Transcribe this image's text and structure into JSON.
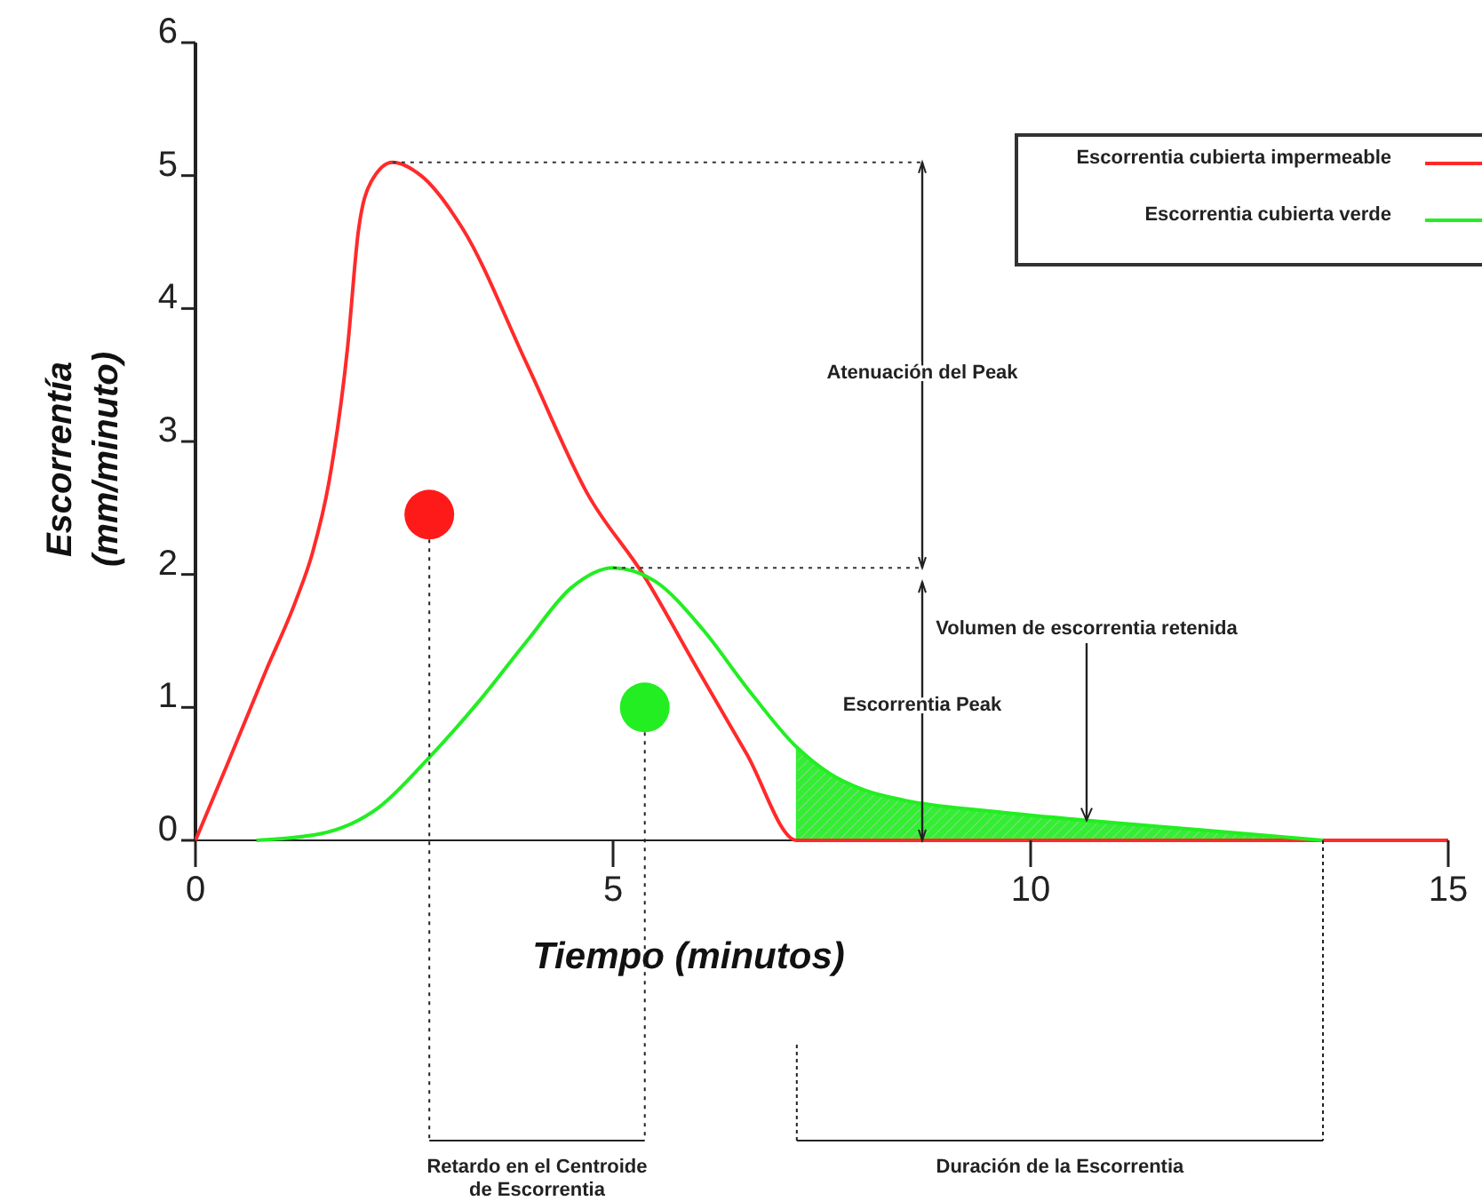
{
  "chart_data": {
    "type": "line",
    "xlabel": "Tiempo (minutos)",
    "ylabel": "Escorrentía\n(mm/minuto)",
    "xlim": [
      0,
      15
    ],
    "ylim": [
      0,
      6
    ],
    "xticks": [
      0,
      5,
      10,
      15
    ],
    "yticks": [
      0,
      1,
      2,
      3,
      4,
      5,
      6
    ],
    "grid": false,
    "legend": "top right",
    "marker": "none",
    "line_style": "solid",
    "series": [
      {
        "name": "Escorrentia cubierta impermeable",
        "color": "#ff2a2a",
        "x": [
          0,
          0.4,
          0.84,
          1.2,
          1.4,
          1.6,
          1.82,
          1.95,
          2.1,
          2.36,
          2.7,
          3.2,
          3.97,
          4.7,
          5.37,
          6.0,
          6.6,
          7.2,
          15
        ],
        "values": [
          0,
          0.6,
          1.27,
          1.8,
          2.16,
          2.7,
          3.7,
          4.58,
          4.95,
          5.1,
          5.0,
          4.6,
          3.58,
          2.6,
          1.99,
          1.3,
          0.65,
          0,
          0
        ]
      },
      {
        "name": "Escorrentia cubierta verde",
        "color": "#22ee22",
        "x": [
          0.73,
          1.5,
          2.2,
          2.78,
          3.4,
          3.97,
          4.5,
          5.0,
          5.5,
          6.07,
          6.6,
          7.2,
          7.6,
          8.0,
          8.5,
          9.5,
          10.67,
          12,
          13.5
        ],
        "values": [
          0,
          0.05,
          0.25,
          0.61,
          1.05,
          1.5,
          1.9,
          2.05,
          1.95,
          1.59,
          1.15,
          0.7,
          0.5,
          0.38,
          0.3,
          0.22,
          0.15,
          0.08,
          0
        ]
      },
      {
        "type": "area",
        "color": "#33ee33",
        "x": [
          7.2,
          7.6,
          8.0,
          8.5,
          9.5,
          10.67,
          12,
          13.5
        ],
        "values": [
          0.7,
          0.5,
          0.38,
          0.3,
          0.22,
          0.15,
          0.08,
          0
        ]
      },
      {
        "type": "scatter",
        "color": "#ff1a1a",
        "marker": "circle",
        "x": [
          2.8
        ],
        "values": [
          2.45
        ]
      },
      {
        "type": "scatter",
        "color": "#22ee22",
        "marker": "circle",
        "x": [
          5.38
        ],
        "values": [
          1.0
        ]
      }
    ],
    "ref_lines": [
      {
        "axis": "y",
        "value": 5.1,
        "label": null,
        "color": "#333333",
        "line_style": "dotted"
      },
      {
        "axis": "y",
        "value": 2.05,
        "label": null,
        "color": "#333333",
        "line_style": "dotted"
      },
      {
        "axis": "x",
        "value": 2.8,
        "label": null,
        "color": "#222222",
        "line_style": "dotted"
      },
      {
        "axis": "x",
        "value": 5.38,
        "label": null,
        "color": "#222222",
        "line_style": "dotted"
      }
    ],
    "annotations": [
      "Atenuación del Peak",
      {
        "text": "Volumen de escorrentia retenida",
        "x": 10.67,
        "y": 0.15
      },
      "Escorrentia Peak",
      "Retardo en el Centroide\nde Escorrentia",
      "Duración de la Escorrentia"
    ]
  }
}
